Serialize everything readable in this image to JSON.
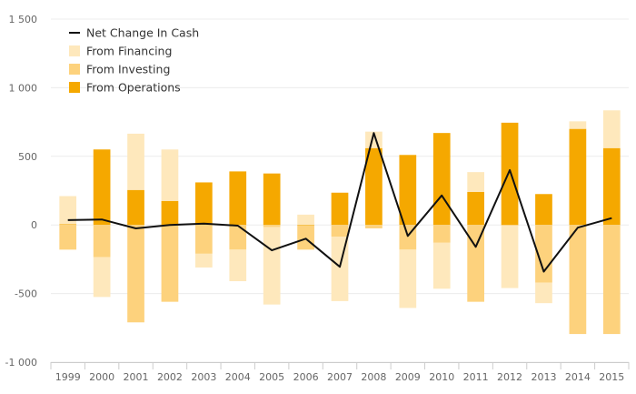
{
  "chart_data": {
    "type": "bar",
    "stacked": "diverging",
    "categories": [
      "1999",
      "2000",
      "2001",
      "2002",
      "2003",
      "2004",
      "2005",
      "2006",
      "2007",
      "2008",
      "2009",
      "2010",
      "2011",
      "2012",
      "2013",
      "2014",
      "2015"
    ],
    "series": [
      {
        "name": "From Operations",
        "type": "bar",
        "color": "#F5A800",
        "values": [
          5,
          550,
          255,
          175,
          310,
          390,
          375,
          -5,
          235,
          560,
          510,
          670,
          240,
          745,
          225,
          700,
          560
        ]
      },
      {
        "name": "From Investing",
        "type": "bar",
        "color": "#FDD27D",
        "values": [
          -180,
          -235,
          -710,
          -560,
          -210,
          -180,
          -15,
          -175,
          -85,
          -25,
          -180,
          -130,
          -560,
          -5,
          -420,
          -795,
          -795
        ]
      },
      {
        "name": "From Financing",
        "type": "bar",
        "color": "#FEE8BC",
        "values": [
          205,
          -290,
          410,
          375,
          -100,
          -230,
          -565,
          75,
          -470,
          120,
          -425,
          -335,
          145,
          -455,
          -150,
          55,
          275
        ]
      },
      {
        "name": "Net Change In Cash",
        "type": "line",
        "color": "#111111",
        "values": [
          35,
          40,
          -25,
          0,
          10,
          -5,
          -185,
          -100,
          -305,
          670,
          -80,
          215,
          -160,
          400,
          -340,
          -20,
          50
        ]
      }
    ],
    "yticks": [
      -1000,
      -500,
      0,
      500,
      1000,
      1500
    ],
    "ytick_labels": [
      "-1 000",
      "-500",
      "0",
      "500",
      "1 000",
      "1 500"
    ],
    "ylim": [
      -1000,
      1500
    ],
    "grid": true,
    "legend_position": "top-left",
    "title": "",
    "xlabel": "",
    "ylabel": ""
  }
}
